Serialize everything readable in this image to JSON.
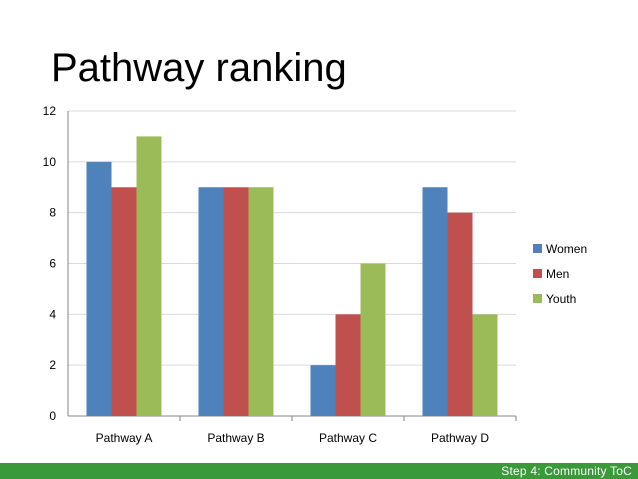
{
  "slide": {
    "title": "Pathway ranking",
    "footer": "Step 4: Community  ToC"
  },
  "chart_data": {
    "type": "bar",
    "title": "",
    "xlabel": "",
    "ylabel": "",
    "categories": [
      "Pathway A",
      "Pathway B",
      "Pathway C",
      "Pathway D"
    ],
    "series": [
      {
        "name": "Women",
        "values": [
          10,
          9,
          2,
          9
        ],
        "color": "#4f81bd"
      },
      {
        "name": "Men",
        "values": [
          9,
          9,
          4,
          8
        ],
        "color": "#c0504d"
      },
      {
        "name": "Youth",
        "values": [
          11,
          9,
          6,
          4
        ],
        "color": "#9bbb59"
      }
    ],
    "ylim": [
      0,
      12
    ],
    "yticks": [
      "0",
      "2",
      "4",
      "6",
      "8",
      "10",
      "12"
    ],
    "grid": true,
    "legend_position": "right"
  },
  "colors": {
    "footer_bar": "#3a9a3a",
    "gridline": "#d9d9d9",
    "axis": "#868686"
  }
}
